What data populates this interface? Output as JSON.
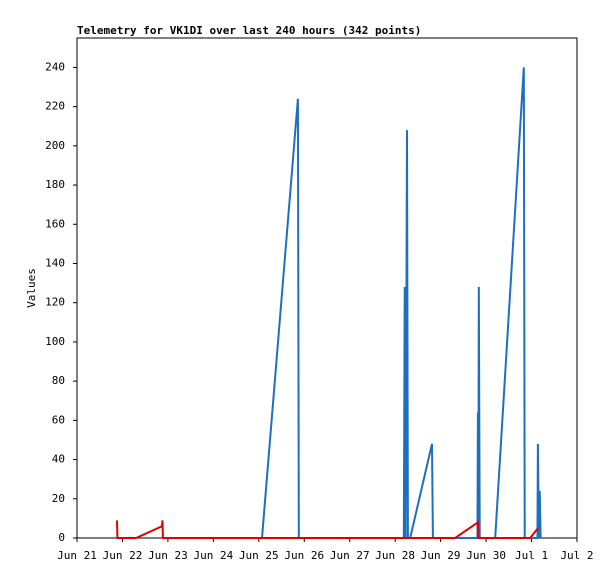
{
  "chart_data": {
    "type": "line",
    "title": "Telemetry for VK1DI over last 240 hours (342 points)",
    "y_label": "Values",
    "xlim": [
      0,
      11
    ],
    "ylim": [
      0,
      255
    ],
    "xticks": [
      {
        "value": 0,
        "label": "Jun 21"
      },
      {
        "value": 1,
        "label": "Jun 22"
      },
      {
        "value": 2,
        "label": "Jun 23"
      },
      {
        "value": 3,
        "label": "Jun 24"
      },
      {
        "value": 4,
        "label": "Jun 25"
      },
      {
        "value": 5,
        "label": "Jun 26"
      },
      {
        "value": 6,
        "label": "Jun 27"
      },
      {
        "value": 7,
        "label": "Jun 28"
      },
      {
        "value": 8,
        "label": "Jun 29"
      },
      {
        "value": 9,
        "label": "Jun 30"
      },
      {
        "value": 10,
        "label": "Jul 1"
      },
      {
        "value": 11,
        "label": "Jul 2"
      }
    ],
    "yticks": [
      0,
      20,
      40,
      60,
      80,
      100,
      120,
      140,
      160,
      180,
      200,
      220,
      240
    ],
    "series": [
      {
        "color": "#1f6fc0",
        "x": [
          1.87,
          4.07,
          4.86,
          4.88,
          7.19,
          7.21,
          7.23,
          7.26,
          7.28,
          7.33,
          7.81,
          7.83,
          8.81,
          8.82,
          8.83,
          8.84,
          8.86,
          9.2,
          9.83,
          9.85,
          10.13,
          10.14,
          10.16,
          10.18,
          10.2
        ],
        "values": [
          0,
          0,
          224,
          0,
          0,
          128,
          0,
          208,
          0,
          0,
          48,
          0,
          0,
          64,
          0,
          128,
          0,
          0,
          240,
          0,
          0,
          48,
          0,
          24,
          0
        ]
      },
      {
        "color": "#e00000",
        "x": [
          0.88,
          0.89,
          1.3,
          1.87,
          1.88,
          1.89,
          8.32,
          8.82,
          8.83,
          9.97,
          10.14
        ],
        "values": [
          9,
          0,
          0,
          6,
          9,
          0,
          0,
          8,
          0,
          0,
          5
        ]
      }
    ]
  }
}
